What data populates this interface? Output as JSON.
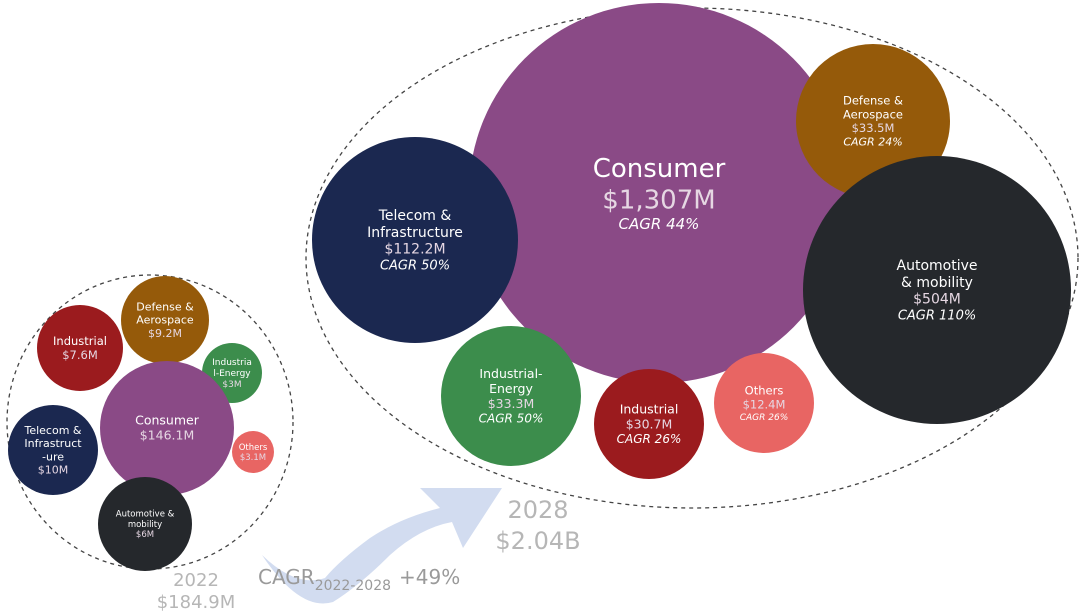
{
  "chart_data": {
    "type": "bubble",
    "groups": [
      {
        "year": "2022",
        "total": "$184.9M",
        "items": [
          {
            "name": [
              "Industrial"
            ],
            "value": 7.6,
            "value_label": "$7.6M",
            "color": "#9b1b1e"
          },
          {
            "name": [
              "Defense &",
              "Aerospace"
            ],
            "value": 9.2,
            "value_label": "$9.2M",
            "color": "#955a0a"
          },
          {
            "name": [
              "Industria",
              "l-Energy"
            ],
            "value": 3,
            "value_label": "$3M",
            "color": "#3c8d4c"
          },
          {
            "name": [
              "Consumer"
            ],
            "value": 146.1,
            "value_label": "$146.1M",
            "color": "#8a4a86"
          },
          {
            "name": [
              "Telecom &",
              "Infrastruct",
              "-ure"
            ],
            "value": 10,
            "value_label": "$10M",
            "color": "#1b2850"
          },
          {
            "name": [
              "Others"
            ],
            "value": 3.1,
            "value_label": "$3.1M",
            "color": "#e86563"
          },
          {
            "name": [
              "Automotive &",
              "mobility"
            ],
            "value": 6,
            "value_label": "$6M",
            "color": "#25282c"
          }
        ]
      },
      {
        "year": "2028",
        "total": "$2.04B",
        "items": [
          {
            "name": [
              "Consumer"
            ],
            "value": 1307,
            "value_label": "$1,307M",
            "cagr": "CAGR 44%",
            "color": "#8a4a86"
          },
          {
            "name": [
              "Defense &",
              "Aerospace"
            ],
            "value": 33.5,
            "value_label": "$33.5M",
            "cagr": "CAGR 24%",
            "color": "#955a0a"
          },
          {
            "name": [
              "Telecom &",
              "Infrastructure"
            ],
            "value": 112.2,
            "value_label": "$112.2M",
            "cagr": "CAGR 50%",
            "color": "#1b2850"
          },
          {
            "name": [
              "Automotive",
              "& mobility"
            ],
            "value": 504,
            "value_label": "$504M",
            "cagr": "CAGR 110%",
            "color": "#25282c"
          },
          {
            "name": [
              "Industrial-",
              "Energy"
            ],
            "value": 33.3,
            "value_label": "$33.3M",
            "cagr": "CAGR 50%",
            "color": "#3c8d4c"
          },
          {
            "name": [
              "Industrial"
            ],
            "value": 30.7,
            "value_label": "$30.7M",
            "cagr": "CAGR 26%",
            "color": "#9b1b1e"
          },
          {
            "name": [
              "Others"
            ],
            "value": 12.4,
            "value_label": "$12.4M",
            "cagr": "CAGR 26%",
            "color": "#e86563"
          }
        ]
      }
    ],
    "growth": {
      "label": "CAGR",
      "period": "2022-2028",
      "value": "+49%"
    }
  }
}
